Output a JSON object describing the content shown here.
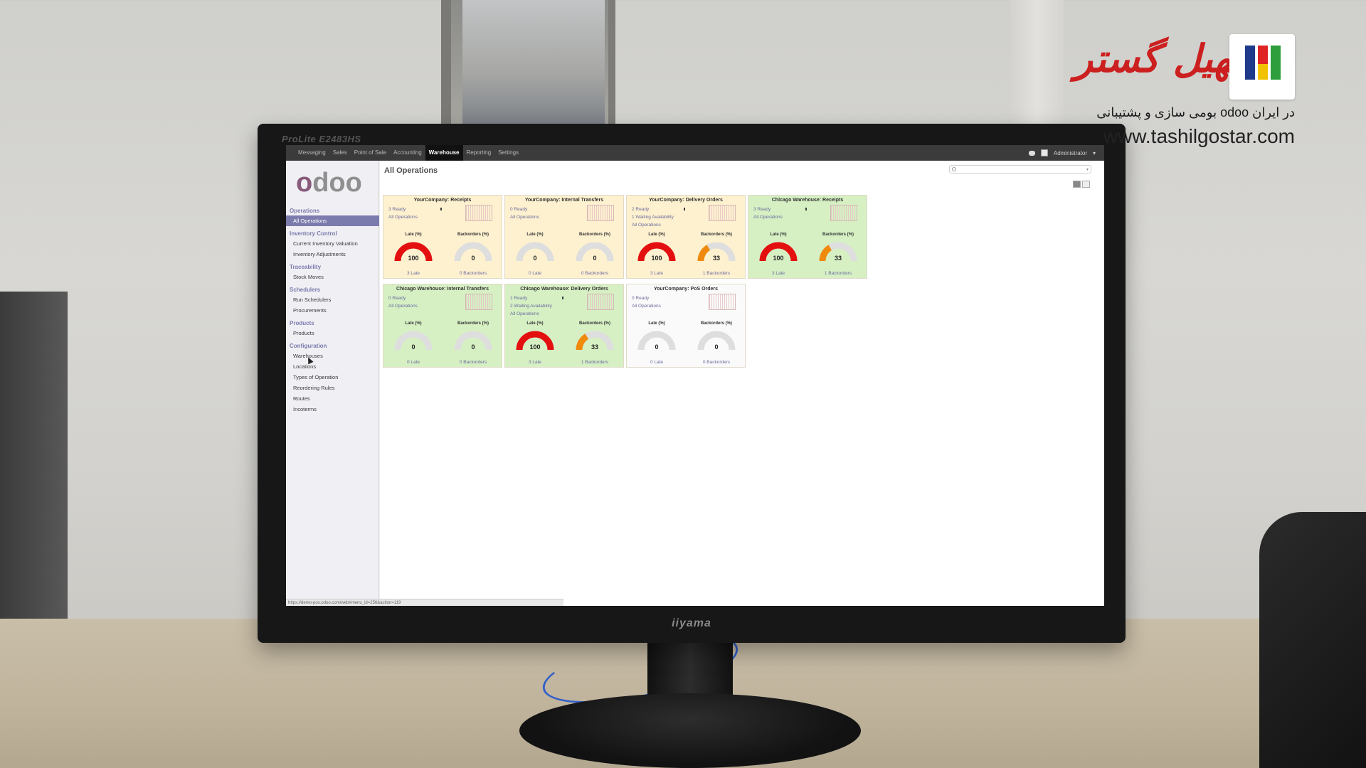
{
  "monitor": {
    "model": "ProLite E2483HS",
    "brand": "iiyama"
  },
  "watermark": {
    "brand": "تسهیل گستر",
    "tagline": "بومی سازی و پشتیبانی odoo در ایران",
    "url": "www.tashilgostar.com"
  },
  "topbar": {
    "menus": [
      "Messaging",
      "Sales",
      "Point of Sale",
      "Accounting",
      "Warehouse",
      "Reporting",
      "Settings"
    ],
    "active_menu": "Warehouse",
    "user": "Administrator"
  },
  "sidebar": {
    "logo": "odoo",
    "sections": [
      {
        "title": "Operations",
        "items": [
          "All Operations"
        ]
      },
      {
        "title": "Inventory Control",
        "items": [
          "Current Inventory Valuation",
          "Inventory Adjustments"
        ]
      },
      {
        "title": "Traceability",
        "items": [
          "Stock Moves"
        ]
      },
      {
        "title": "Schedulers",
        "items": [
          "Run Schedulers",
          "Procurements"
        ]
      },
      {
        "title": "Products",
        "items": [
          "Products"
        ]
      },
      {
        "title": "Configuration",
        "items": [
          "Warehouses",
          "Locations",
          "Types of Operation",
          "Reordering Rules",
          "Routes",
          "Incoterms"
        ]
      }
    ],
    "active_item": "All Operations"
  },
  "main": {
    "title": "All Operations",
    "search": {
      "placeholder": ""
    },
    "status_url": "https://demo-pos.odoo.com/web#menu_id=256&action=119"
  },
  "colors": {
    "gauge_red": "#e3100f",
    "gauge_orange": "#f08a0c",
    "gauge_grey": "#dedede",
    "card_yellow": "#fdf1cf",
    "card_green": "#d6f0c4",
    "card_white": "#fafafa",
    "brand_purple": "#875a7b",
    "sidebar_accent": "#7c7bad"
  },
  "cards": [
    {
      "title": "YourCompany: Receipts",
      "color": "yellow",
      "stats": [
        "3 Ready",
        "All Operations"
      ],
      "late_label": "Late (%)",
      "backorders_label": "Backorders (%)",
      "late_pct": 100,
      "backorders_pct": 0,
      "late_text": "3 Late",
      "backorders_text": "0 Backorders",
      "mini_bar": true
    },
    {
      "title": "YourCompany: Internal Transfers",
      "color": "yellow",
      "stats": [
        "0 Ready",
        "All Operations"
      ],
      "late_label": "Late (%)",
      "backorders_label": "Backorders (%)",
      "late_pct": 0,
      "backorders_pct": 0,
      "late_text": "0 Late",
      "backorders_text": "0 Backorders",
      "mini_bar": false
    },
    {
      "title": "YourCompany: Delivery Orders",
      "color": "yellow",
      "stats": [
        "2 Ready",
        "1 Waiting Availability",
        "All Operations"
      ],
      "late_label": "Late (%)",
      "backorders_label": "Backorders (%)",
      "late_pct": 100,
      "backorders_pct": 33,
      "late_text": "3 Late",
      "backorders_text": "1 Backorders",
      "mini_bar": true
    },
    {
      "title": "Chicago Warehouse: Receipts",
      "color": "green",
      "stats": [
        "3 Ready",
        "All Operations"
      ],
      "late_label": "Late (%)",
      "backorders_label": "Backorders (%)",
      "late_pct": 100,
      "backorders_pct": 33,
      "late_text": "3 Late",
      "backorders_text": "1 Backorders",
      "mini_bar": true
    },
    {
      "title": "Chicago Warehouse: Internal Transfers",
      "color": "green",
      "stats": [
        "0 Ready",
        "All Operations"
      ],
      "late_label": "Late (%)",
      "backorders_label": "Backorders (%)",
      "late_pct": 0,
      "backorders_pct": 0,
      "late_text": "0 Late",
      "backorders_text": "0 Backorders",
      "mini_bar": false
    },
    {
      "title": "Chicago Warehouse: Delivery Orders",
      "color": "green",
      "stats": [
        "1 Ready",
        "2 Waiting Availability",
        "All Operations"
      ],
      "late_label": "Late (%)",
      "backorders_label": "Backorders (%)",
      "late_pct": 100,
      "backorders_pct": 33,
      "late_text": "3 Late",
      "backorders_text": "1 Backorders",
      "mini_bar": true
    },
    {
      "title": "YourCompany: PoS Orders",
      "color": "white",
      "stats": [
        "0 Ready",
        "All Operations"
      ],
      "late_label": "Late (%)",
      "backorders_label": "Backorders (%)",
      "late_pct": 0,
      "backorders_pct": 0,
      "late_text": "0 Late",
      "backorders_text": "0 Backorders",
      "mini_bar": false
    }
  ]
}
